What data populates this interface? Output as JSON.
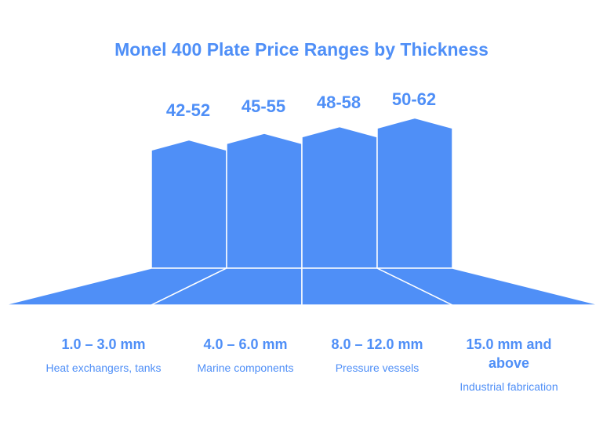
{
  "title": "Monel 400 Plate Price Ranges by Thickness",
  "colors": {
    "accent": "#4f8ff7",
    "bar": "#4f8ff7",
    "divider": "#ffffff"
  },
  "chart_data": {
    "type": "bar",
    "title": "Monel 400 Plate Price Ranges by Thickness",
    "categories": [
      "1.0 – 3.0 mm",
      "4.0 – 6.0 mm",
      "8.0 – 12.0 mm",
      "15.0 mm and above"
    ],
    "descriptions": [
      "Heat exchangers, tanks",
      "Marine components",
      "Pressure vessels",
      "Industrial fabrication"
    ],
    "value_labels": [
      "42-52",
      "45-55",
      "48-58",
      "50-62"
    ],
    "ranges": [
      [
        42,
        52
      ],
      [
        45,
        55
      ],
      [
        48,
        58
      ],
      [
        50,
        62
      ]
    ]
  }
}
